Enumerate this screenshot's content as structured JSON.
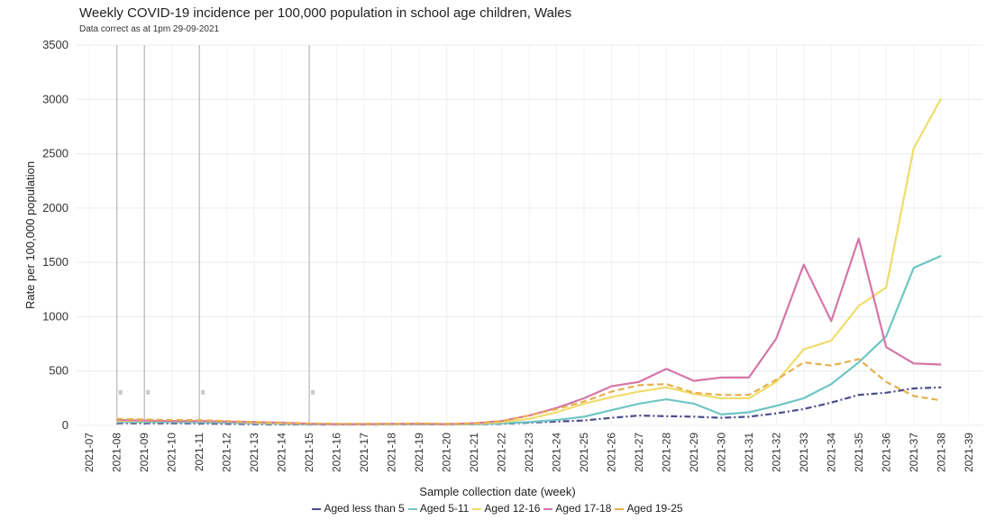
{
  "chart_data": {
    "type": "line",
    "title": "Weekly COVID-19 incidence per 100,000 population in school age children, Wales",
    "subtitle": "Data correct as at 1pm 29-09-2021",
    "xlabel": "Sample collection date (week)",
    "ylabel": "Rate per 100,000 population",
    "ylim": [
      0,
      3500
    ],
    "yticks": [
      0,
      500,
      1000,
      1500,
      2000,
      2500,
      3000,
      3500
    ],
    "grid": true,
    "legend_position": "bottom",
    "categories": [
      "2021-07",
      "2021-08",
      "2021-09",
      "2021-10",
      "2021-11",
      "2021-12",
      "2021-13",
      "2021-14",
      "2021-15",
      "2021-16",
      "2021-17",
      "2021-18",
      "2021-19",
      "2021-20",
      "2021-21",
      "2021-22",
      "2021-23",
      "2021-24",
      "2021-25",
      "2021-26",
      "2021-27",
      "2021-28",
      "2021-29",
      "2021-30",
      "2021-31",
      "2021-32",
      "2021-33",
      "2021-34",
      "2021-35",
      "2021-36",
      "2021-37",
      "2021-38",
      "2021-39"
    ],
    "vlines": [
      "2021-08",
      "2021-09",
      "2021-11",
      "2021-15"
    ],
    "series": [
      {
        "name": "Aged less than 5",
        "color": "#4b4b8a",
        "dash": "7,3,2,3",
        "values": [
          null,
          20,
          20,
          20,
          18,
          15,
          12,
          10,
          8,
          8,
          8,
          8,
          10,
          8,
          10,
          15,
          25,
          35,
          45,
          70,
          90,
          85,
          80,
          70,
          80,
          110,
          150,
          210,
          280,
          300,
          340,
          350,
          null
        ]
      },
      {
        "name": "Aged 5-11",
        "color": "#6ec6c4",
        "dash": "",
        "values": [
          null,
          30,
          30,
          30,
          28,
          25,
          20,
          15,
          10,
          10,
          10,
          10,
          12,
          8,
          10,
          20,
          30,
          50,
          80,
          140,
          200,
          240,
          200,
          100,
          120,
          180,
          250,
          380,
          580,
          820,
          1450,
          1560,
          null
        ]
      },
      {
        "name": "Aged 12-16",
        "color": "#f0dc6c",
        "dash": "",
        "values": [
          null,
          40,
          40,
          40,
          38,
          35,
          25,
          20,
          15,
          12,
          12,
          12,
          15,
          10,
          15,
          30,
          60,
          120,
          200,
          260,
          310,
          350,
          290,
          250,
          250,
          400,
          700,
          780,
          1100,
          1270,
          2550,
          3010,
          null
        ]
      },
      {
        "name": "Aged 17-18",
        "color": "#d675a8",
        "dash": "",
        "values": [
          null,
          50,
          45,
          40,
          40,
          35,
          30,
          25,
          15,
          12,
          12,
          15,
          15,
          12,
          20,
          40,
          90,
          160,
          250,
          360,
          400,
          520,
          410,
          440,
          440,
          800,
          1480,
          960,
          1720,
          720,
          570,
          560,
          null
        ]
      },
      {
        "name": "Aged 19-25",
        "color": "#e8b04c",
        "dash": "7,4",
        "values": [
          null,
          60,
          55,
          50,
          48,
          40,
          30,
          25,
          18,
          15,
          15,
          15,
          18,
          15,
          20,
          40,
          90,
          150,
          220,
          310,
          370,
          380,
          300,
          280,
          280,
          420,
          580,
          550,
          610,
          400,
          270,
          230,
          null
        ]
      }
    ]
  }
}
